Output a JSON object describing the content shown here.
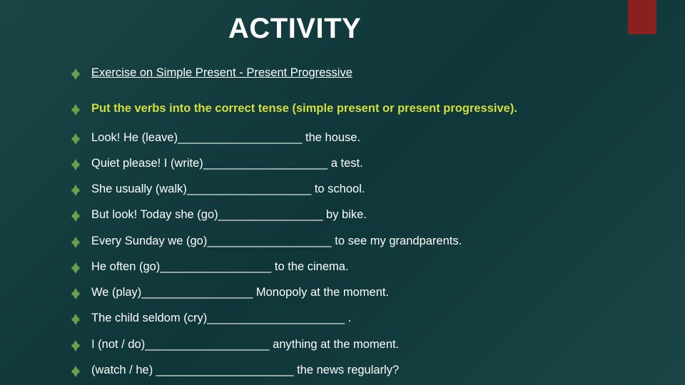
{
  "slide": {
    "title": "ACTIVITY",
    "accent_color": "#8b2020",
    "bullet_color": "#6aa04a",
    "highlight_color": "#d4df3a",
    "background_gradient": [
      "#1a4547",
      "#0f3638",
      "#1a4547"
    ],
    "items": [
      {
        "text": "Exercise on Simple Present - Present Progressive",
        "underline_first": true
      },
      {
        "text": "Put the verbs into the correct tense (simple present or present progressive).",
        "highlight": true
      },
      {
        "text": "Look! He (leave)___________________  the house."
      },
      {
        "text": "Quiet please! I (write)___________________  a test."
      },
      {
        "text": "She usually (walk)___________________ to school."
      },
      {
        "text": "But look! Today she (go)________________  by bike."
      },
      {
        "text": "Every Sunday we (go)___________________  to see my grandparents."
      },
      {
        "text": "He often (go)_________________  to the cinema."
      },
      {
        "text": "We (play)_________________  Monopoly at the moment."
      },
      {
        "text": "The child seldom (cry)_____________________ ."
      },
      {
        "text": "I (not / do)___________________ anything at the moment."
      },
      {
        "text": "(watch / he)  _____________________ the news regularly?"
      }
    ]
  }
}
